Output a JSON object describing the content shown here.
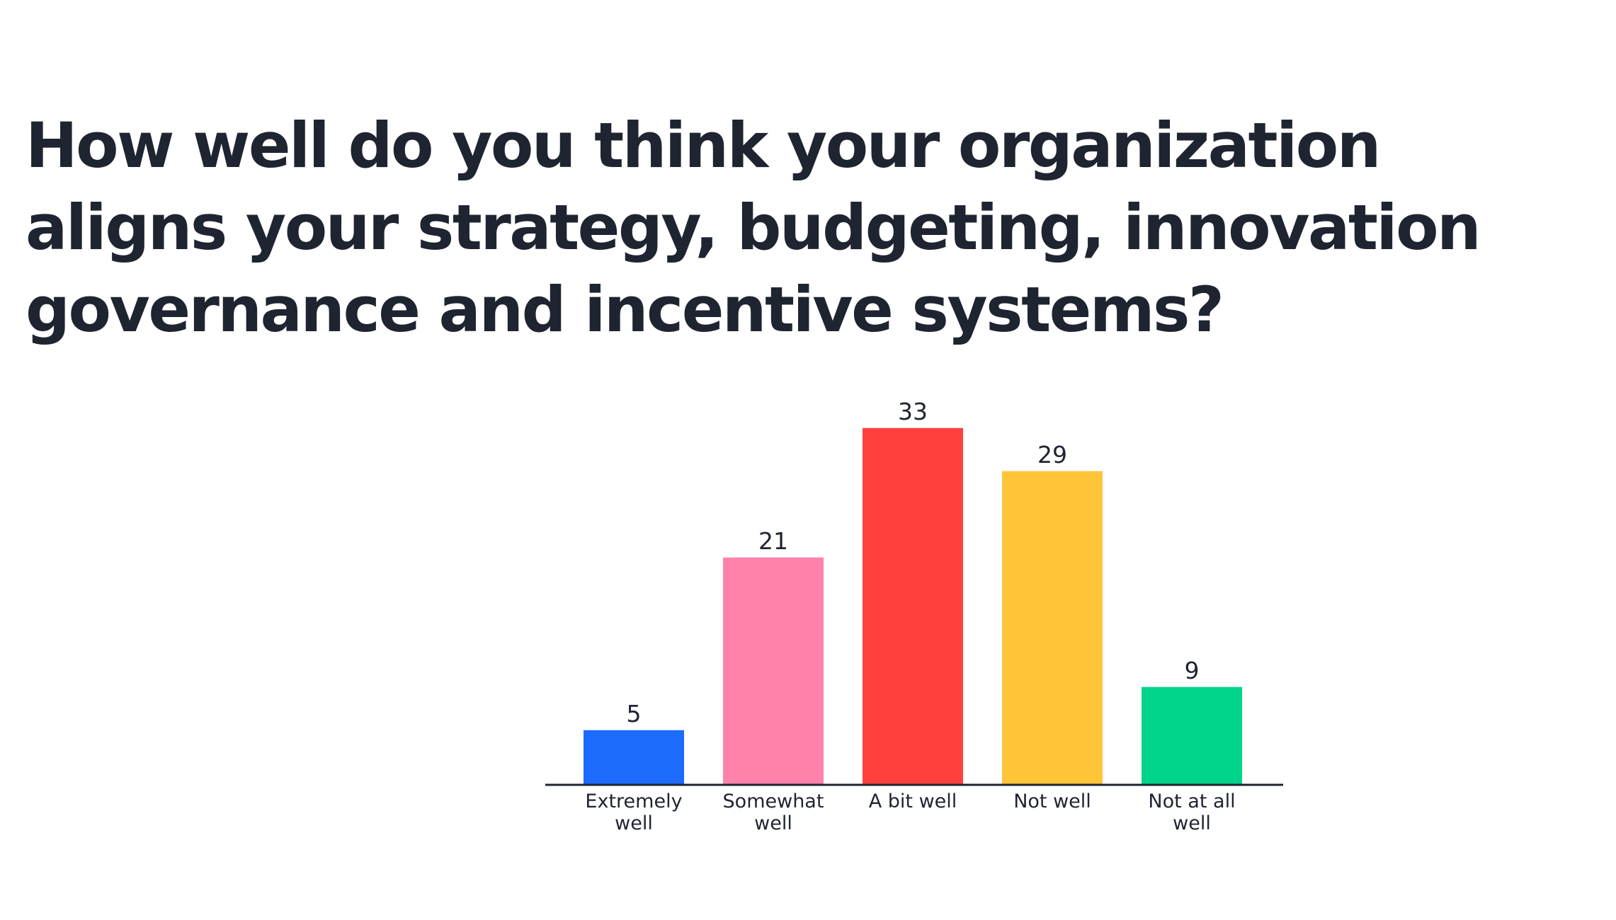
{
  "slide": {
    "question": "How well do you think your organization aligns your strategy, budgeting, innovation governance and incentive systems?"
  },
  "chart_data": {
    "type": "bar",
    "title": "How well do you think your organization aligns your strategy, budgeting, innovation governance and incentive systems?",
    "categories": [
      [
        "Extremely",
        "well"
      ],
      [
        "Somewhat",
        "well"
      ],
      [
        "A bit well"
      ],
      [
        "Not well"
      ],
      [
        "Not at all",
        "well"
      ]
    ],
    "values": [
      5,
      21,
      33,
      29,
      9
    ],
    "colors": [
      "#1c6bfd",
      "#ff82aa",
      "#ff403d",
      "#ffc438",
      "#00d48a"
    ],
    "grid": false,
    "legend": "none"
  }
}
